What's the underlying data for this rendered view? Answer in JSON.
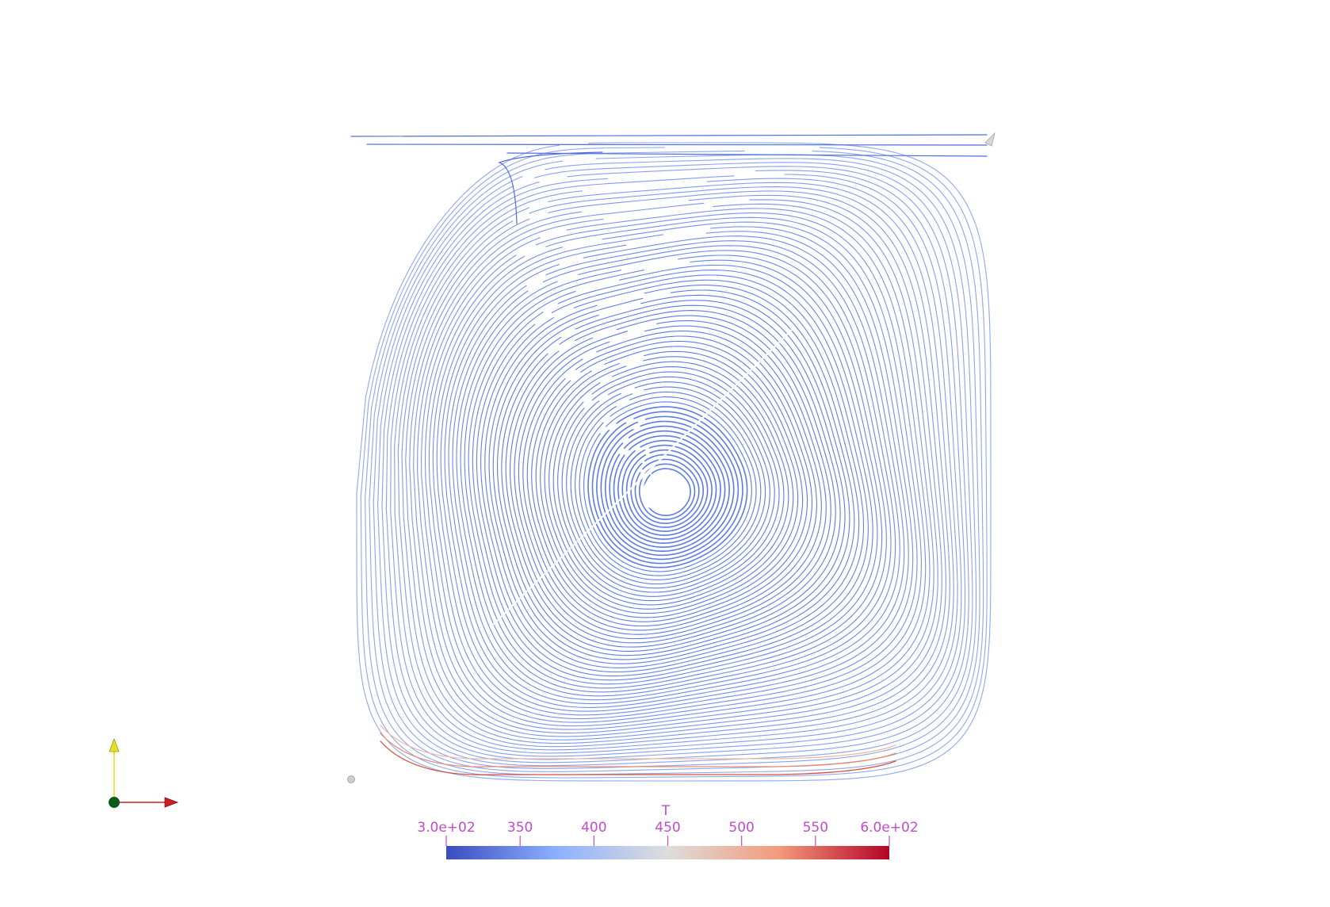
{
  "scalar_bar": {
    "title": "T",
    "range": [
      300,
      600
    ],
    "ticks": [
      {
        "value": 300,
        "label": "3.0e+02"
      },
      {
        "value": 350,
        "label": "350"
      },
      {
        "value": 400,
        "label": "400"
      },
      {
        "value": 450,
        "label": "450"
      },
      {
        "value": 500,
        "label": "500"
      },
      {
        "value": 550,
        "label": "550"
      },
      {
        "value": 600,
        "label": "6.0e+02"
      }
    ],
    "colormap": [
      "#3b4cc0",
      "#8db0fe",
      "#dddddd",
      "#f49a7b",
      "#b40426"
    ],
    "text_color": "#c04cc8"
  },
  "orientation_axes": {
    "x_color": "#cc1f1f",
    "y_color": "#e8e020",
    "z_color": "#0a5c1a"
  },
  "streamlines": {
    "cold_color": "#4a6ee0",
    "mid_color": "#a9c0f5",
    "hot_color": "#d9503a"
  }
}
